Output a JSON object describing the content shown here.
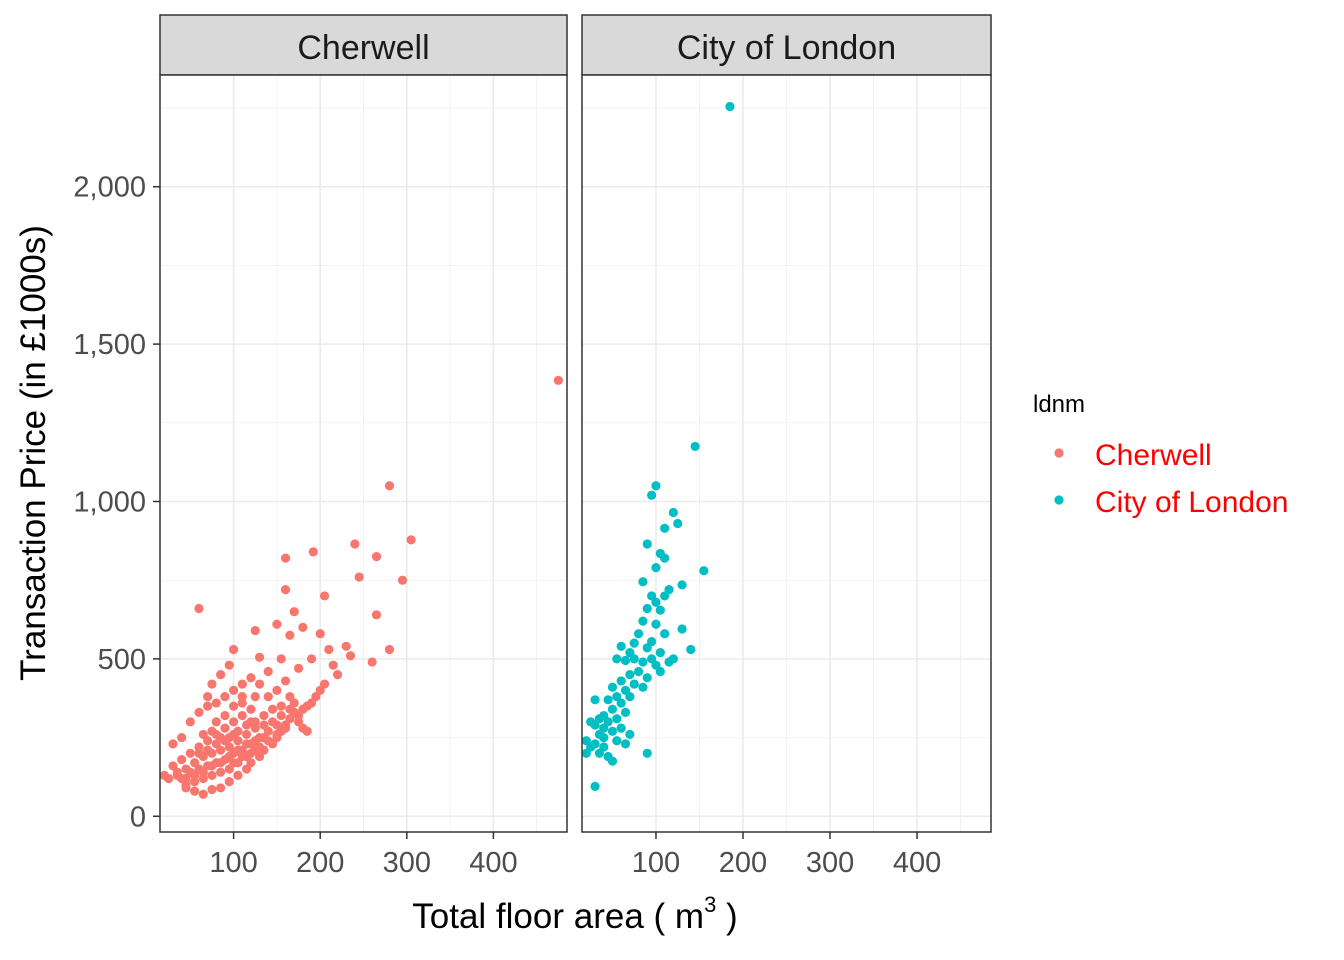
{
  "chart_data": {
    "type": "scatter",
    "facets": [
      {
        "name": "Cherwell",
        "color": "#F8766D",
        "points": [
          [
            475,
            1385
          ],
          [
            280,
            1050
          ],
          [
            305,
            878
          ],
          [
            240,
            865
          ],
          [
            192,
            840
          ],
          [
            160,
            820
          ],
          [
            265,
            825
          ],
          [
            245,
            760
          ],
          [
            295,
            750
          ],
          [
            60,
            660
          ],
          [
            205,
            700
          ],
          [
            160,
            720
          ],
          [
            170,
            650
          ],
          [
            265,
            640
          ],
          [
            125,
            590
          ],
          [
            150,
            610
          ],
          [
            180,
            600
          ],
          [
            165,
            575
          ],
          [
            200,
            580
          ],
          [
            210,
            530
          ],
          [
            230,
            540
          ],
          [
            280,
            530
          ],
          [
            260,
            490
          ],
          [
            235,
            510
          ],
          [
            190,
            500
          ],
          [
            155,
            500
          ],
          [
            130,
            505
          ],
          [
            100,
            530
          ],
          [
            95,
            480
          ],
          [
            85,
            450
          ],
          [
            75,
            420
          ],
          [
            70,
            380
          ],
          [
            215,
            480
          ],
          [
            140,
            460
          ],
          [
            120,
            440
          ],
          [
            175,
            470
          ],
          [
            110,
            420
          ],
          [
            160,
            430
          ],
          [
            150,
            400
          ],
          [
            130,
            420
          ],
          [
            140,
            380
          ],
          [
            125,
            380
          ],
          [
            165,
            380
          ],
          [
            110,
            380
          ],
          [
            100,
            400
          ],
          [
            90,
            380
          ],
          [
            80,
            360
          ],
          [
            70,
            350
          ],
          [
            60,
            330
          ],
          [
            50,
            300
          ],
          [
            40,
            250
          ],
          [
            30,
            230
          ],
          [
            25,
            120
          ],
          [
            35,
            140
          ],
          [
            45,
            100
          ],
          [
            55,
            80
          ],
          [
            65,
            70
          ],
          [
            75,
            85
          ],
          [
            85,
            90
          ],
          [
            95,
            110
          ],
          [
            105,
            130
          ],
          [
            115,
            150
          ],
          [
            120,
            170
          ],
          [
            130,
            190
          ],
          [
            135,
            210
          ],
          [
            145,
            230
          ],
          [
            150,
            250
          ],
          [
            155,
            270
          ],
          [
            160,
            290
          ],
          [
            165,
            310
          ],
          [
            170,
            330
          ],
          [
            175,
            300
          ],
          [
            180,
            280
          ],
          [
            185,
            270
          ],
          [
            100,
            300
          ],
          [
            110,
            320
          ],
          [
            120,
            340
          ],
          [
            90,
            280
          ],
          [
            80,
            260
          ],
          [
            70,
            240
          ],
          [
            60,
            220
          ],
          [
            50,
            200
          ],
          [
            40,
            180
          ],
          [
            30,
            160
          ],
          [
            20,
            130
          ],
          [
            95,
            250
          ],
          [
            105,
            270
          ],
          [
            115,
            290
          ],
          [
            125,
            300
          ],
          [
            135,
            320
          ],
          [
            145,
            340
          ],
          [
            155,
            350
          ],
          [
            75,
            200
          ],
          [
            85,
            210
          ],
          [
            65,
            190
          ],
          [
            55,
            170
          ],
          [
            45,
            150
          ],
          [
            35,
            130
          ],
          [
            100,
            200
          ],
          [
            110,
            210
          ],
          [
            120,
            230
          ],
          [
            130,
            250
          ],
          [
            140,
            270
          ],
          [
            150,
            290
          ],
          [
            90,
            180
          ],
          [
            80,
            170
          ],
          [
            70,
            160
          ],
          [
            60,
            150
          ],
          [
            50,
            140
          ],
          [
            40,
            120
          ],
          [
            95,
            150
          ],
          [
            105,
            170
          ],
          [
            115,
            190
          ],
          [
            125,
            210
          ],
          [
            85,
            140
          ],
          [
            75,
            130
          ],
          [
            65,
            120
          ],
          [
            55,
            110
          ],
          [
            45,
            90
          ],
          [
            100,
            350
          ],
          [
            110,
            360
          ],
          [
            120,
            300
          ],
          [
            90,
            320
          ],
          [
            80,
            300
          ],
          [
            95,
            220
          ],
          [
            105,
            240
          ],
          [
            115,
            260
          ],
          [
            125,
            280
          ],
          [
            135,
            290
          ],
          [
            145,
            300
          ],
          [
            155,
            320
          ],
          [
            165,
            340
          ],
          [
            170,
            360
          ],
          [
            100,
            260
          ],
          [
            90,
            240
          ],
          [
            80,
            230
          ],
          [
            70,
            210
          ],
          [
            60,
            200
          ],
          [
            85,
            250
          ],
          [
            75,
            270
          ],
          [
            65,
            260
          ],
          [
            115,
            230
          ],
          [
            125,
            240
          ],
          [
            135,
            250
          ],
          [
            105,
            210
          ],
          [
            95,
            190
          ],
          [
            85,
            170
          ],
          [
            75,
            160
          ],
          [
            65,
            140
          ],
          [
            55,
            130
          ],
          [
            45,
            120
          ],
          [
            100,
            170
          ],
          [
            110,
            190
          ],
          [
            120,
            200
          ],
          [
            130,
            220
          ],
          [
            140,
            240
          ],
          [
            150,
            260
          ],
          [
            160,
            280
          ],
          [
            200,
            400
          ],
          [
            185,
            350
          ],
          [
            175,
            320
          ],
          [
            190,
            360
          ],
          [
            180,
            340
          ],
          [
            195,
            380
          ],
          [
            205,
            420
          ],
          [
            220,
            450
          ]
        ]
      },
      {
        "name": "City of London",
        "color": "#00BFC4",
        "points": [
          [
            185,
            2255
          ],
          [
            145,
            1175
          ],
          [
            100,
            1050
          ],
          [
            95,
            1020
          ],
          [
            120,
            965
          ],
          [
            125,
            930
          ],
          [
            110,
            915
          ],
          [
            90,
            865
          ],
          [
            105,
            835
          ],
          [
            110,
            820
          ],
          [
            155,
            780
          ],
          [
            100,
            790
          ],
          [
            85,
            745
          ],
          [
            130,
            735
          ],
          [
            115,
            720
          ],
          [
            110,
            700
          ],
          [
            95,
            700
          ],
          [
            100,
            680
          ],
          [
            90,
            660
          ],
          [
            105,
            655
          ],
          [
            85,
            620
          ],
          [
            100,
            610
          ],
          [
            110,
            580
          ],
          [
            130,
            595
          ],
          [
            80,
            580
          ],
          [
            75,
            550
          ],
          [
            95,
            555
          ],
          [
            90,
            535
          ],
          [
            140,
            530
          ],
          [
            105,
            520
          ],
          [
            60,
            540
          ],
          [
            70,
            520
          ],
          [
            120,
            500
          ],
          [
            115,
            490
          ],
          [
            75,
            500
          ],
          [
            65,
            495
          ],
          [
            55,
            500
          ],
          [
            85,
            490
          ],
          [
            95,
            500
          ],
          [
            100,
            480
          ],
          [
            105,
            460
          ],
          [
            80,
            460
          ],
          [
            70,
            450
          ],
          [
            90,
            440
          ],
          [
            60,
            430
          ],
          [
            75,
            420
          ],
          [
            85,
            410
          ],
          [
            50,
            410
          ],
          [
            65,
            400
          ],
          [
            55,
            380
          ],
          [
            70,
            380
          ],
          [
            45,
            370
          ],
          [
            60,
            360
          ],
          [
            30,
            370
          ],
          [
            50,
            340
          ],
          [
            65,
            330
          ],
          [
            40,
            320
          ],
          [
            55,
            310
          ],
          [
            45,
            300
          ],
          [
            35,
            310
          ],
          [
            30,
            290
          ],
          [
            25,
            300
          ],
          [
            40,
            280
          ],
          [
            60,
            280
          ],
          [
            50,
            270
          ],
          [
            70,
            260
          ],
          [
            35,
            260
          ],
          [
            20,
            240
          ],
          [
            30,
            230
          ],
          [
            25,
            220
          ],
          [
            40,
            220
          ],
          [
            20,
            200
          ],
          [
            35,
            200
          ],
          [
            45,
            190
          ],
          [
            50,
            175
          ],
          [
            90,
            200
          ],
          [
            40,
            250
          ],
          [
            55,
            240
          ],
          [
            65,
            230
          ],
          [
            30,
            95
          ]
        ]
      }
    ],
    "xlabel": "Total floor area ( m",
    "xlabel_superscript": "3",
    "xlabel_suffix": " )",
    "ylabel": "Transaction Price (in £1000s)",
    "xlim": [
      15,
      485
    ],
    "ylim": [
      -50,
      2355
    ],
    "x_ticks": [
      100,
      200,
      300,
      400
    ],
    "x_tick_labels": [
      "100",
      "200",
      "300",
      "400"
    ],
    "y_ticks": [
      0,
      500,
      1000,
      1500,
      2000
    ],
    "y_tick_labels": [
      "0",
      "500",
      "1,000",
      "1,500",
      "2,000"
    ],
    "grid": true,
    "legend": {
      "title": "ldnm",
      "position": "right",
      "entries": [
        {
          "label": "Cherwell",
          "color": "#F8766D"
        },
        {
          "label": "City of London",
          "color": "#00BFC4"
        }
      ]
    }
  }
}
